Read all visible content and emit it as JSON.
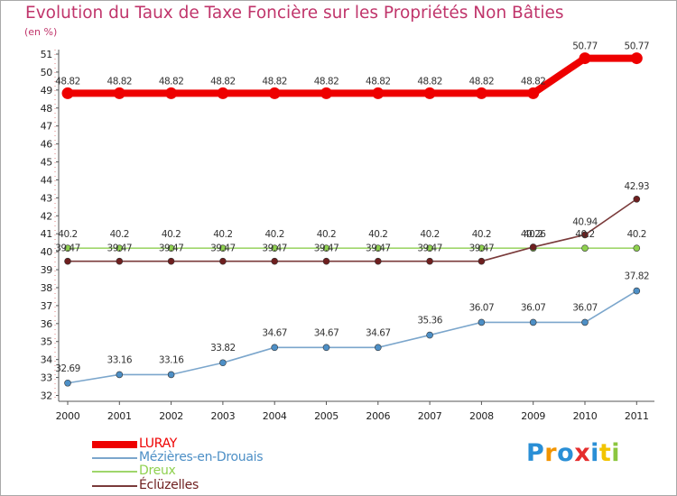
{
  "title": "Evolution du Taux de Taxe Foncière sur les Propriétés Non Bâties",
  "subtitle": "(en %)",
  "logo": {
    "text": "Proxiti",
    "colors": [
      "#2a8fd6",
      "#f29400",
      "#2a8fd6",
      "#e52d2d",
      "#2a8fd6",
      "#f2c400",
      "#8cc63f"
    ]
  },
  "colors": {
    "title": "#c0356b",
    "text": "#222222"
  },
  "chart_data": {
    "type": "line",
    "title": "Evolution du Taux de Taxe Foncière sur les Propriétés Non Bâties",
    "ylabel": "(en %)",
    "xlabel": "",
    "ylim": [
      32,
      51
    ],
    "grid": false,
    "legend_position": "bottom-left",
    "x": [
      2000,
      2001,
      2002,
      2003,
      2004,
      2005,
      2006,
      2007,
      2008,
      2009,
      2010,
      2011
    ],
    "x_tick_labels": [
      "2000",
      "2001",
      "2002",
      "2003",
      "2004",
      "2005",
      "2006",
      "2007",
      "2008",
      "2009",
      "2010",
      "2011"
    ],
    "y_ticks": [
      32,
      33,
      34,
      35,
      36,
      37,
      38,
      39,
      40,
      41,
      42,
      43,
      44,
      45,
      46,
      47,
      48,
      49,
      50,
      51
    ],
    "series": [
      {
        "name": "LURAY",
        "color": "#ee0000",
        "marker": "#ee0000",
        "values": [
          48.82,
          48.82,
          48.82,
          48.82,
          48.82,
          48.82,
          48.82,
          48.82,
          48.82,
          48.82,
          50.77,
          50.77
        ],
        "labels": [
          "48.82",
          "48.82",
          "48.82",
          "48.82",
          "48.82",
          "48.82",
          "48.82",
          "48.82",
          "48.82",
          "48.82",
          "50.77",
          "50.77"
        ]
      },
      {
        "name": "Mézières-en-Drouais",
        "color": "#7ba6cc",
        "marker": "#4d8fc6",
        "values": [
          32.69,
          33.16,
          33.16,
          33.82,
          34.67,
          34.67,
          34.67,
          35.36,
          36.07,
          36.07,
          36.07,
          37.82
        ],
        "labels": [
          "32.69",
          "33.16",
          "33.16",
          "33.82",
          "34.67",
          "34.67",
          "34.67",
          "35.36",
          "36.07",
          "36.07",
          "36.07",
          "37.82"
        ]
      },
      {
        "name": "Dreux",
        "color": "#9fd66b",
        "marker": "#8fd14f",
        "values": [
          40.2,
          40.2,
          40.2,
          40.2,
          40.2,
          40.2,
          40.2,
          40.2,
          40.2,
          40.2,
          40.2,
          40.2
        ],
        "labels": [
          "40.2",
          "40.2",
          "40.2",
          "40.2",
          "40.2",
          "40.2",
          "40.2",
          "40.2",
          "40.2",
          "40.2",
          "40.2",
          "40.2"
        ]
      },
      {
        "name": "Éclüzelles",
        "color": "#7a3a3a",
        "marker": "#6e1f1f",
        "values": [
          39.47,
          39.47,
          39.47,
          39.47,
          39.47,
          39.47,
          39.47,
          39.47,
          39.47,
          40.26,
          40.94,
          42.93
        ],
        "labels": [
          "39.47",
          "39.47",
          "39.47",
          "39.47",
          "39.47",
          "39.47",
          "39.47",
          "39.47",
          "39.47",
          "40.26",
          "40.94",
          "42.93"
        ]
      }
    ]
  }
}
